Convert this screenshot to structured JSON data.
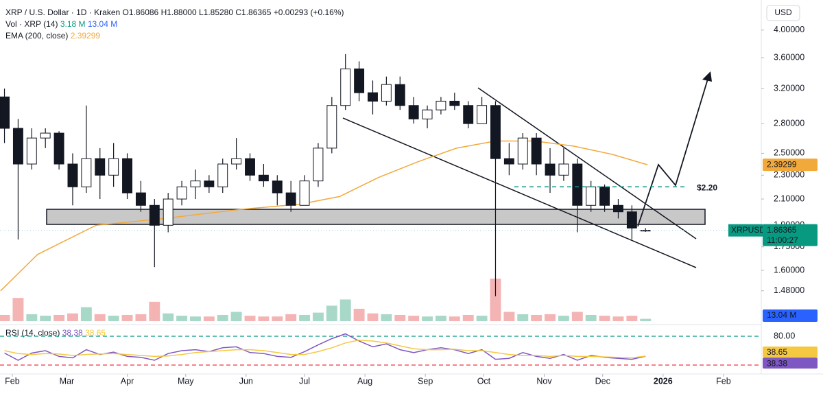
{
  "chart_data": {
    "type": "candlestick",
    "header": {
      "symbol": "XRP / U.S. Dollar · 1D · Kraken",
      "ohlc": [
        "O1.86086",
        "H1.88000",
        "L1.85280",
        "C1.86365"
      ],
      "change": "+0.00293 (+0.16%)"
    },
    "axis_unit": "USD",
    "log_scale": true,
    "grid": false,
    "up_color": "#ffffff",
    "down_color": "#131722",
    "xlim": [
      25.7,
      416.4
    ],
    "xticks": [
      {
        "value": 32,
        "label": "Feb"
      },
      {
        "value": 60,
        "label": "Mar"
      },
      {
        "value": 91,
        "label": "Apr"
      },
      {
        "value": 121,
        "label": "May"
      },
      {
        "value": 152,
        "label": "Jun"
      },
      {
        "value": 182,
        "label": "Jul"
      },
      {
        "value": 213,
        "label": "Aug"
      },
      {
        "value": 244,
        "label": "Sep"
      },
      {
        "value": 274,
        "label": "Oct"
      },
      {
        "value": 305,
        "label": "Nov"
      },
      {
        "value": 335,
        "label": "Dec"
      },
      {
        "value": 366,
        "label": "2026"
      },
      {
        "value": 397,
        "label": "Feb"
      }
    ],
    "ylim": [
      1.4,
      4.37
    ],
    "yticks": [
      {
        "value": 4,
        "label": "4.00000"
      },
      {
        "value": 3.6,
        "label": "3.60000"
      },
      {
        "value": 3.2,
        "label": "3.20000"
      },
      {
        "value": 2.8,
        "label": "2.80000"
      },
      {
        "value": 2.5,
        "label": "2.50000"
      },
      {
        "value": 2.3,
        "label": "2.30000"
      },
      {
        "value": 2.1,
        "label": "2.10000"
      },
      {
        "value": 1.9,
        "label": "1.90000"
      },
      {
        "value": 1.75,
        "label": "1.75000"
      },
      {
        "value": 1.6,
        "label": "1.60000"
      },
      {
        "value": 1.48,
        "label": "1.48000"
      }
    ],
    "x": [
      28,
      35,
      42,
      49,
      56,
      63,
      70,
      77,
      84,
      91,
      98,
      105,
      112,
      119,
      126,
      133,
      140,
      147,
      154,
      161,
      168,
      175,
      182,
      189,
      196,
      203,
      210,
      217,
      224,
      231,
      238,
      245,
      252,
      259,
      266,
      273,
      280,
      287,
      294,
      301,
      308,
      315,
      322,
      329,
      336,
      343,
      350,
      357
    ],
    "open": [
      3.1,
      2.75,
      2.4,
      2.65,
      2.7,
      2.4,
      2.2,
      2.45,
      2.3,
      2.45,
      2.15,
      2.05,
      1.9,
      2.1,
      2.2,
      2.25,
      2.2,
      2.4,
      2.45,
      2.3,
      2.25,
      2.15,
      2.05,
      2.25,
      2.55,
      3.0,
      3.45,
      3.15,
      3.05,
      3.25,
      3.0,
      2.85,
      2.95,
      3.05,
      3.0,
      2.8,
      3.0,
      2.45,
      2.4,
      2.65,
      2.4,
      2.3,
      2.4,
      2.05,
      2.2,
      2.05,
      2.0,
      1.86086
    ],
    "high": [
      3.2,
      2.85,
      2.75,
      2.75,
      2.72,
      2.5,
      3.0,
      2.55,
      2.6,
      2.5,
      2.25,
      2.1,
      2.15,
      2.25,
      2.35,
      2.3,
      2.45,
      2.65,
      2.5,
      2.4,
      2.3,
      2.25,
      2.3,
      2.6,
      3.1,
      3.65,
      3.55,
      3.3,
      3.35,
      3.35,
      3.1,
      3.0,
      3.1,
      3.15,
      3.05,
      3.1,
      3.05,
      2.6,
      2.7,
      2.7,
      2.55,
      2.55,
      2.45,
      2.25,
      2.22,
      2.1,
      2.05,
      1.88
    ],
    "low": [
      2.6,
      1.8,
      2.35,
      2.55,
      2.35,
      2.05,
      2.15,
      2.1,
      2.2,
      2.1,
      2.0,
      1.62,
      1.85,
      2.05,
      2.1,
      2.15,
      2.15,
      2.35,
      2.25,
      2.2,
      2.05,
      2.0,
      2.05,
      2.2,
      2.5,
      2.95,
      3.05,
      2.9,
      3.0,
      2.95,
      2.8,
      2.75,
      2.9,
      2.95,
      2.75,
      2.8,
      1.45,
      2.3,
      2.35,
      2.3,
      2.15,
      2.25,
      1.85,
      2.0,
      2.0,
      1.95,
      1.8,
      1.8528
    ],
    "close": [
      2.75,
      2.4,
      2.65,
      2.7,
      2.4,
      2.2,
      2.45,
      2.3,
      2.45,
      2.15,
      2.05,
      1.9,
      2.1,
      2.2,
      2.25,
      2.2,
      2.4,
      2.45,
      2.3,
      2.25,
      2.15,
      2.05,
      2.25,
      2.55,
      3.0,
      3.45,
      3.15,
      3.05,
      3.25,
      3.0,
      2.85,
      2.95,
      3.05,
      3.0,
      2.8,
      3.0,
      2.45,
      2.4,
      2.65,
      2.4,
      2.3,
      2.4,
      2.05,
      2.2,
      2.05,
      2.0,
      1.88,
      1.86365
    ],
    "last_price": {
      "symbol": "XRPUSD",
      "value": 1.86365,
      "countdown": "11:00:27",
      "color": "#089981"
    },
    "ema": {
      "name": "EMA (200, close)",
      "color": "#f2a93b",
      "x": [
        26,
        45,
        75,
        110,
        150,
        180,
        200,
        220,
        240,
        260,
        280,
        300,
        320,
        340,
        358
      ],
      "values": [
        1.48,
        1.7,
        1.9,
        1.95,
        2.02,
        2.06,
        2.12,
        2.28,
        2.42,
        2.55,
        2.62,
        2.62,
        2.57,
        2.49,
        2.39299
      ]
    },
    "volume": {
      "name": "Vol · XRP (14)",
      "value_label": "3.18 M",
      "ma_label": "13.04 M",
      "ma_color": "#2962ff",
      "up_color": "#a8d8c8",
      "down_color": "#f4b4b4",
      "values": [
        8,
        30,
        9,
        7,
        8,
        10,
        18,
        9,
        7,
        8,
        9,
        25,
        10,
        7,
        6,
        6,
        8,
        12,
        7,
        6,
        6,
        9,
        8,
        11,
        20,
        28,
        16,
        10,
        9,
        8,
        7,
        6,
        7,
        6,
        8,
        7,
        55,
        12,
        9,
        8,
        9,
        7,
        12,
        8,
        7,
        6,
        7,
        3
      ]
    },
    "rsi": {
      "name": "RSI (14, close)",
      "ylim": [
        0,
        100
      ],
      "yticks": [
        {
          "value": 80,
          "label": "80.00"
        }
      ],
      "bands": [
        {
          "value": 80,
          "color": "#089981"
        },
        {
          "value": 20,
          "color": "#f23645"
        }
      ],
      "series": [
        {
          "color": "#7e57c2",
          "values": [
            45,
            30,
            45,
            50,
            38,
            35,
            52,
            42,
            47,
            38,
            36,
            30,
            44,
            50,
            52,
            48,
            56,
            58,
            46,
            44,
            38,
            36,
            48,
            62,
            75,
            85,
            70,
            58,
            64,
            52,
            46,
            52,
            56,
            52,
            44,
            52,
            32,
            34,
            46,
            38,
            34,
            42,
            30,
            40,
            36,
            34,
            32,
            38.38
          ]
        },
        {
          "color": "#f5c842",
          "values": [
            50,
            44,
            42,
            44,
            43,
            40,
            42,
            43,
            44,
            42,
            40,
            38,
            39,
            42,
            46,
            48,
            50,
            52,
            52,
            50,
            46,
            42,
            42,
            48,
            56,
            66,
            72,
            70,
            66,
            60,
            54,
            52,
            52,
            53,
            50,
            50,
            46,
            42,
            40,
            40,
            38,
            40,
            38,
            38,
            37,
            36,
            35,
            38.65
          ]
        }
      ]
    },
    "level": {
      "value": 2.2,
      "label": "$2.20",
      "color": "#089981"
    }
  }
}
